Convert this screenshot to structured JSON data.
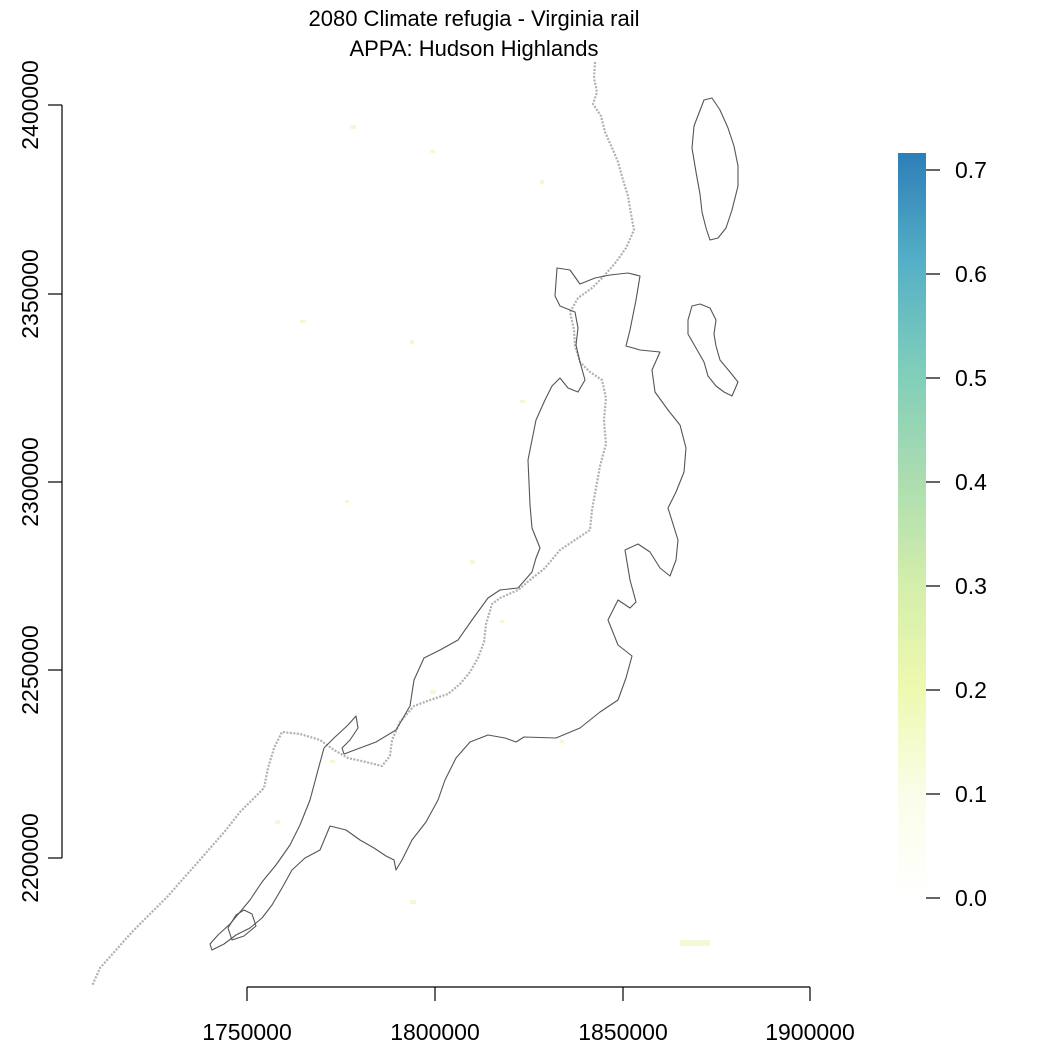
{
  "map": {
    "title_line1": "2080 Climate refugia - Virginia rail",
    "title_line2": "APPA: Hudson Highlands",
    "x_ticks": [
      "1750000",
      "1800000",
      "1850000",
      "1900000"
    ],
    "y_ticks": [
      "2200000",
      "2250000",
      "2300000",
      "2350000",
      "2400000"
    ],
    "colors": {
      "boundary": "#555555",
      "trail": "#b0b0b0",
      "raster_low": "#f3f8d0"
    }
  },
  "legend": {
    "labels": [
      "0.0",
      "0.1",
      "0.2",
      "0.3",
      "0.4",
      "0.5",
      "0.6",
      "0.7"
    ],
    "values": [
      0.0,
      0.1,
      0.2,
      0.3,
      0.4,
      0.5,
      0.6,
      0.7
    ],
    "colors": [
      "#ffffff",
      "#fafde8",
      "#eef9b0",
      "#d4eeab",
      "#a9dcb0",
      "#7fcdbb",
      "#56b0c6",
      "#2c7fb8"
    ]
  }
}
